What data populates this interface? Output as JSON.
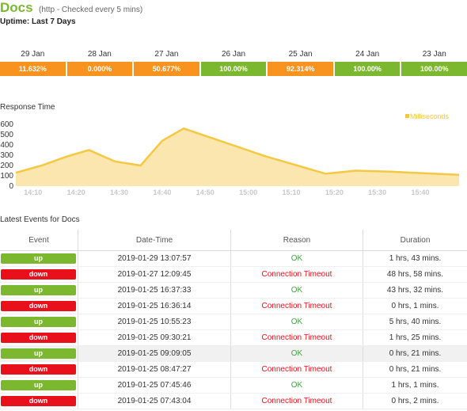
{
  "header": {
    "name": "Docs",
    "subtitle": "(http - Checked every 5 mins)"
  },
  "uptime": {
    "label": "Uptime:",
    "value": "Last 7 Days"
  },
  "days": [
    {
      "date": "29 Jan",
      "pct": "11.632%",
      "color": "#f7931e"
    },
    {
      "date": "28 Jan",
      "pct": "0.000%",
      "color": "#f7931e"
    },
    {
      "date": "27 Jan",
      "pct": "50.677%",
      "color": "#f7931e"
    },
    {
      "date": "26 Jan",
      "pct": "100.00%",
      "color": "#7cb82f"
    },
    {
      "date": "25 Jan",
      "pct": "92.314%",
      "color": "#f7931e"
    },
    {
      "date": "24 Jan",
      "pct": "100.00%",
      "color": "#7cb82f"
    },
    {
      "date": "23 Jan",
      "pct": "100.00%",
      "color": "#7cb82f"
    }
  ],
  "response": {
    "title": "Response Time"
  },
  "chart_data": {
    "type": "area",
    "x": [
      "14:06",
      "14:12",
      "14:18",
      "14:23",
      "14:29",
      "14:35",
      "14:40",
      "14:45",
      "15:04",
      "15:18",
      "15:25",
      "15:33",
      "15:49"
    ],
    "values": [
      130,
      200,
      290,
      350,
      240,
      200,
      440,
      560,
      290,
      120,
      150,
      140,
      110
    ],
    "ylim": [
      0,
      600
    ],
    "yticks": [
      0,
      100,
      200,
      300,
      400,
      500,
      600
    ],
    "xticks": [
      "14:10",
      "14:20",
      "14:30",
      "14:40",
      "14:50",
      "15:00",
      "15:10",
      "15:20",
      "15:30",
      "15:40"
    ],
    "legend": "Milliseconds",
    "color": "#f5c842",
    "fill": "#fbe6b0"
  },
  "events": {
    "title": "Latest Events for Docs",
    "headers": {
      "event": "Event",
      "datetime": "Date-Time",
      "reason": "Reason",
      "duration": "Duration"
    },
    "rows": [
      {
        "status": "up",
        "time": "2019-01-29 13:07:57",
        "reason": "OK",
        "duration": "1 hrs, 43 mins."
      },
      {
        "status": "down",
        "time": "2019-01-27 12:09:45",
        "reason": "Connection Timeout",
        "duration": "48 hrs, 58 mins."
      },
      {
        "status": "up",
        "time": "2019-01-25 16:37:33",
        "reason": "OK",
        "duration": "43 hrs, 32 mins."
      },
      {
        "status": "down",
        "time": "2019-01-25 16:36:14",
        "reason": "Connection Timeout",
        "duration": "0 hrs, 1 mins."
      },
      {
        "status": "up",
        "time": "2019-01-25 10:55:23",
        "reason": "OK",
        "duration": "5 hrs, 40 mins."
      },
      {
        "status": "down",
        "time": "2019-01-25 09:30:21",
        "reason": "Connection Timeout",
        "duration": "1 hrs, 25 mins."
      },
      {
        "status": "up",
        "time": "2019-01-25 09:09:05",
        "reason": "OK",
        "duration": "0 hrs, 21 mins."
      },
      {
        "status": "down",
        "time": "2019-01-25 08:47:27",
        "reason": "Connection Timeout",
        "duration": "0 hrs, 21 mins."
      },
      {
        "status": "up",
        "time": "2019-01-25 07:45:46",
        "reason": "OK",
        "duration": "1 hrs, 1 mins."
      },
      {
        "status": "down",
        "time": "2019-01-25 07:43:04",
        "reason": "Connection Timeout",
        "duration": "0 hrs, 2 mins."
      }
    ]
  }
}
